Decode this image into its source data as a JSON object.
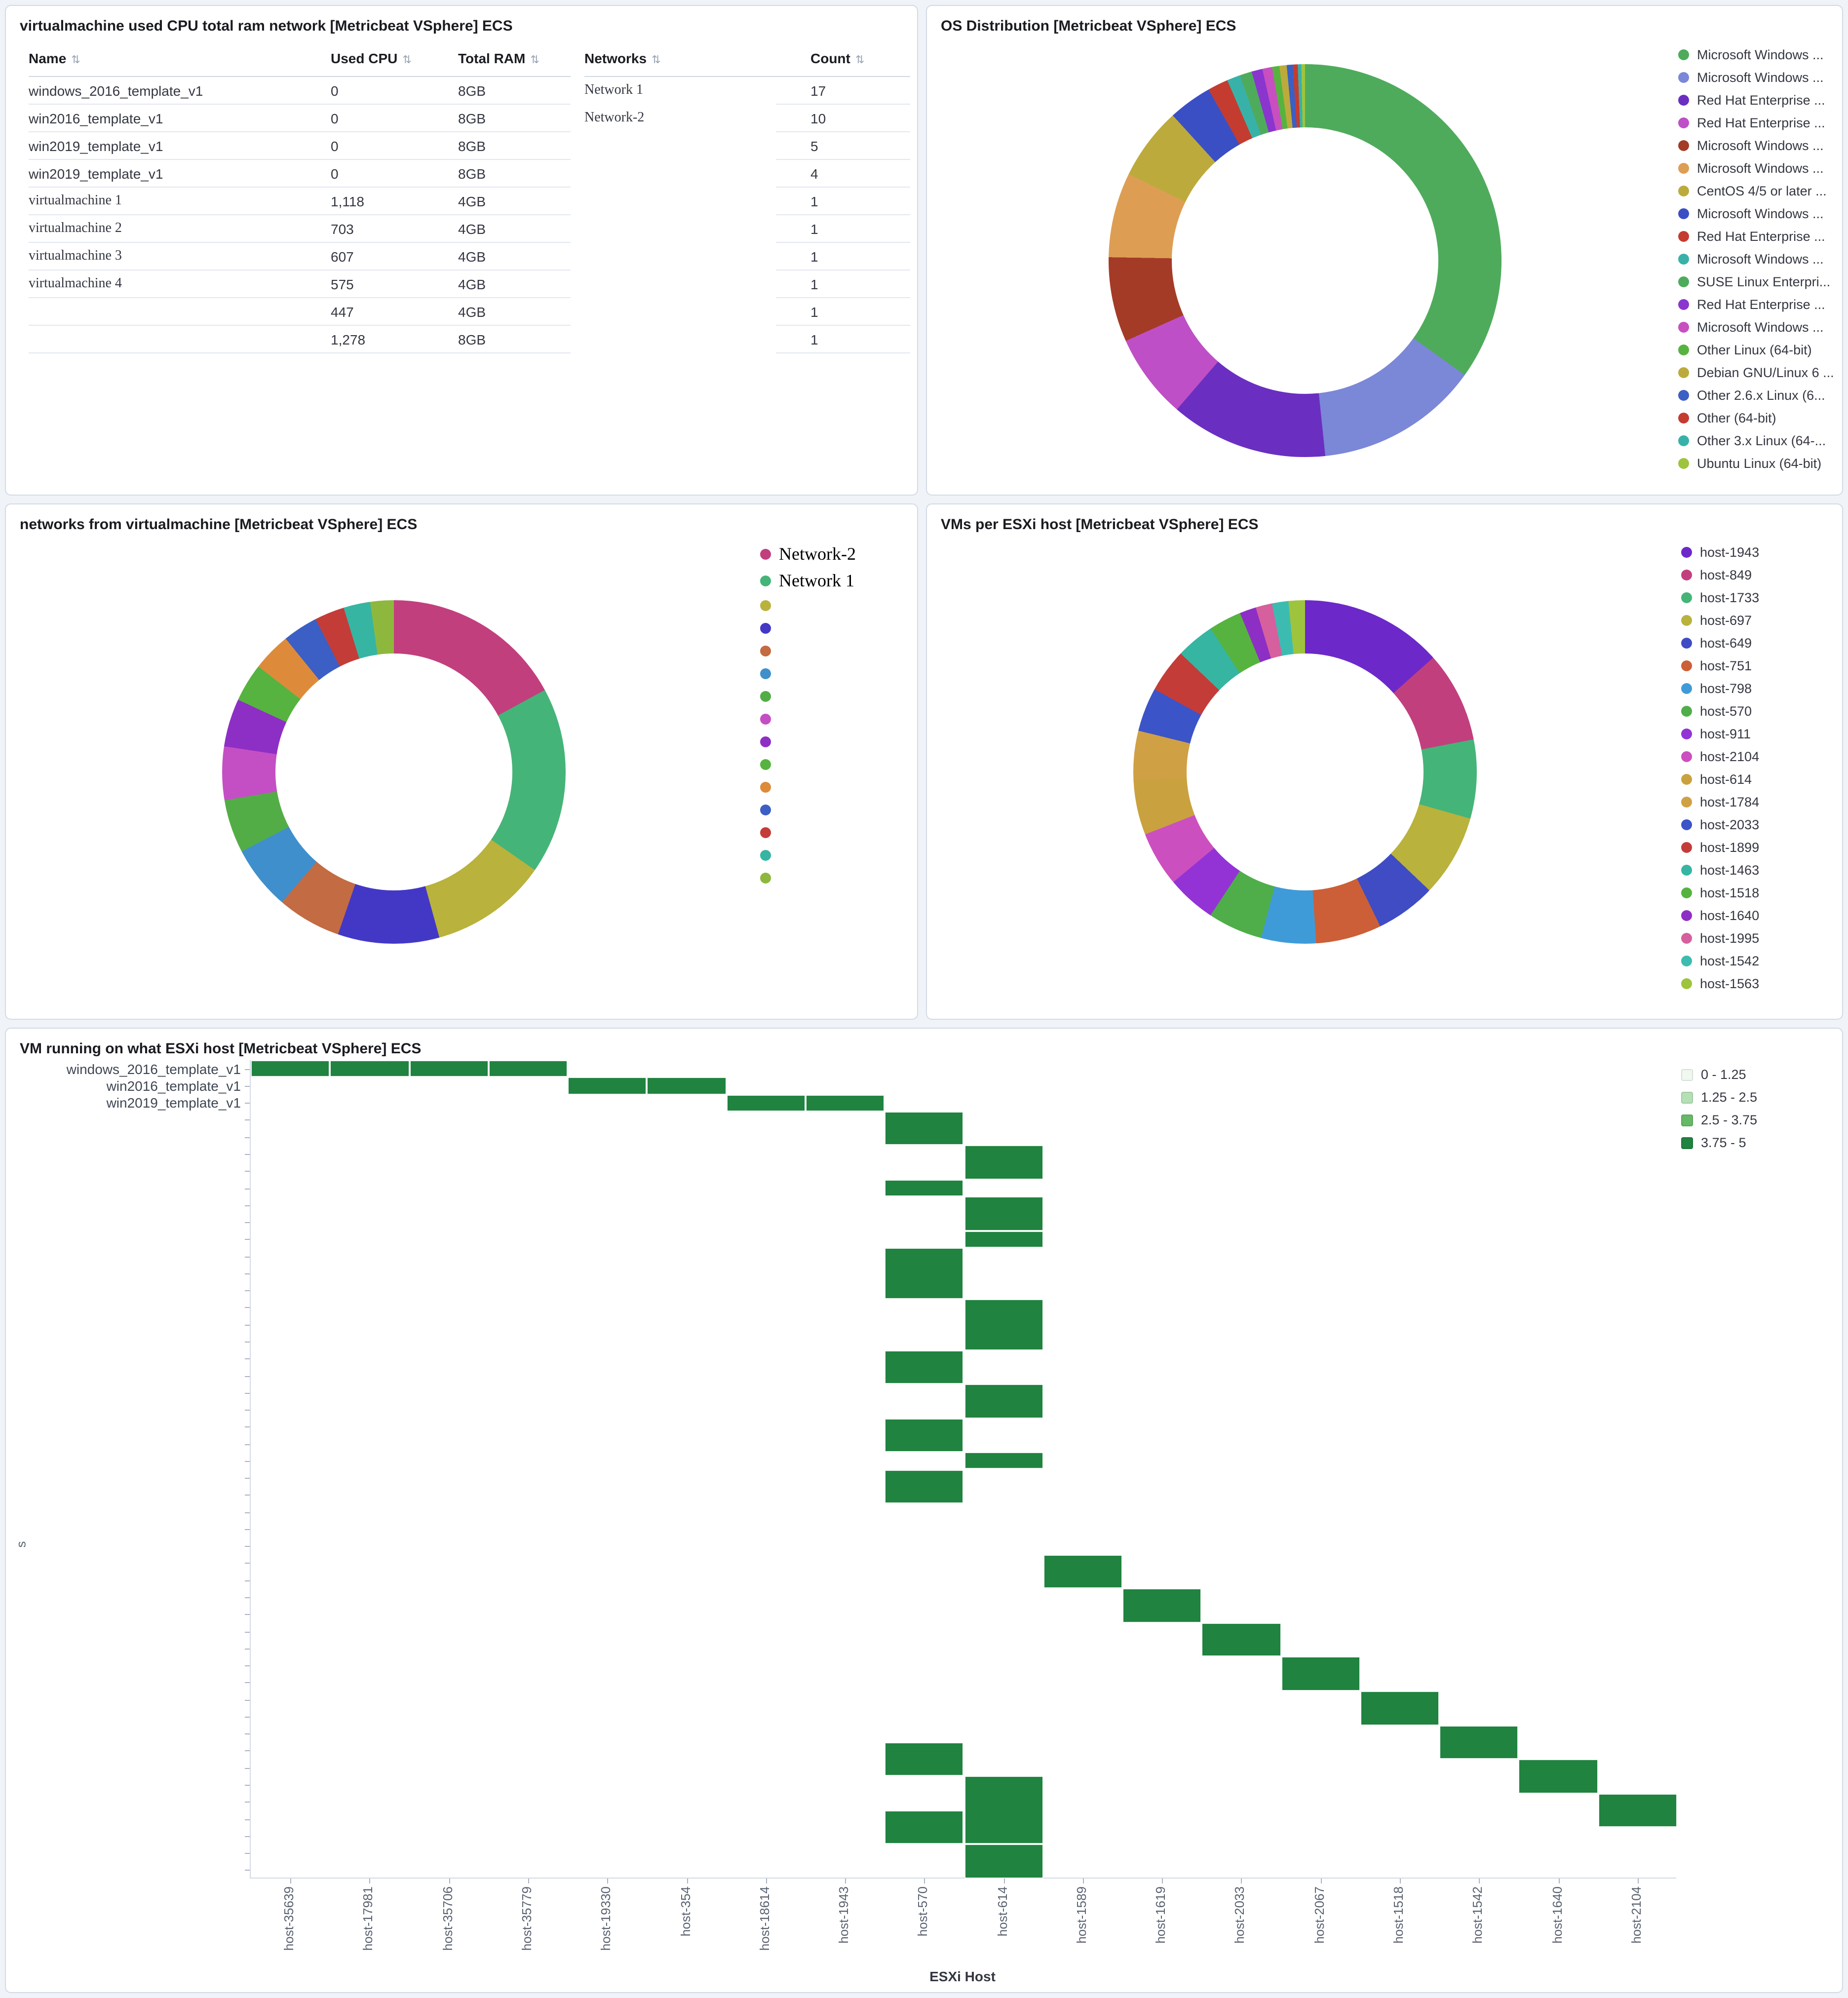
{
  "panels": {
    "vm_table": {
      "title": "virtualmachine used CPU total ram network [Metricbeat VSphere] ECS"
    },
    "os_dist": {
      "title": "OS Distribution [Metricbeat VSphere] ECS"
    },
    "networks": {
      "title": "networks from virtualmachine [Metricbeat VSphere] ECS"
    },
    "vms_per_host": {
      "title": "VMs per ESXi host [Metricbeat VSphere] ECS"
    },
    "heatmap": {
      "title": "VM running on what ESXi host [Metricbeat VSphere] ECS"
    }
  },
  "chart_data": [
    {
      "type": "table",
      "title": "virtualmachine used CPU total ram network",
      "left_columns": [
        "Name",
        "Used CPU",
        "Total RAM"
      ],
      "left_rows": [
        {
          "name": "windows_2016_template_v1",
          "used_cpu": "0",
          "total_ram": "8GB",
          "serif": false
        },
        {
          "name": "win2016_template_v1",
          "used_cpu": "0",
          "total_ram": "8GB",
          "serif": false
        },
        {
          "name": "win2019_template_v1",
          "used_cpu": "0",
          "total_ram": "8GB",
          "serif": false
        },
        {
          "name": "win2019_template_v1",
          "used_cpu": "0",
          "total_ram": "8GB",
          "serif": false
        },
        {
          "name": "virtualmachine 1",
          "used_cpu": "1,118",
          "total_ram": "4GB",
          "serif": true
        },
        {
          "name": "virtualmachine 2",
          "used_cpu": "703",
          "total_ram": "4GB",
          "serif": true
        },
        {
          "name": "virtualmachine 3",
          "used_cpu": "607",
          "total_ram": "4GB",
          "serif": true
        },
        {
          "name": "virtualmachine 4",
          "used_cpu": "575",
          "total_ram": "4GB",
          "serif": true
        },
        {
          "name": "",
          "used_cpu": "447",
          "total_ram": "4GB",
          "serif": false
        },
        {
          "name": "",
          "used_cpu": "1,278",
          "total_ram": "8GB",
          "serif": false
        }
      ],
      "right_columns": [
        "Networks",
        "Count"
      ],
      "right_rows": [
        {
          "network": "Network 1",
          "count": "17",
          "serif": true
        },
        {
          "network": "Network-2",
          "count": "10",
          "serif": true
        },
        {
          "network": "",
          "count": "5",
          "serif": false
        },
        {
          "network": "",
          "count": "4",
          "serif": false
        },
        {
          "network": "",
          "count": "1",
          "serif": false
        },
        {
          "network": "",
          "count": "1",
          "serif": false
        },
        {
          "network": "",
          "count": "1",
          "serif": false
        },
        {
          "network": "",
          "count": "1",
          "serif": false
        },
        {
          "network": "",
          "count": "1",
          "serif": false
        },
        {
          "network": "",
          "count": "1",
          "serif": false
        }
      ]
    },
    {
      "type": "pie",
      "donut": true,
      "title": "OS Distribution",
      "legend_position": "right",
      "labels": [
        "Microsoft Windows ...",
        "Microsoft Windows ...",
        "Red Hat Enterprise ...",
        "Red Hat Enterprise ...",
        "Microsoft Windows ...",
        "Microsoft Windows ...",
        "CentOS 4/5 or later ...",
        "Microsoft Windows ...",
        "Red Hat Enterprise ...",
        "Microsoft Windows ...",
        "SUSE Linux Enterpri...",
        "Red Hat Enterprise ...",
        "Microsoft Windows ...",
        "Other Linux (64-bit)",
        "Debian GNU/Linux 6 ...",
        "Other 2.6.x Linux (6...",
        "Other (64-bit)",
        "Other 3.x Linux (64-...",
        "Ubuntu Linux (64-bit)"
      ],
      "values": [
        35,
        13.5,
        13,
        7,
        7,
        7,
        6,
        3.6,
        1.7,
        1.1,
        1.0,
        0.9,
        0.8,
        0.6,
        0.6,
        0.5,
        0.4,
        0.3,
        0.3
      ],
      "colors": [
        "#4fab5c",
        "#7b87d7",
        "#6a2fc1",
        "#bf4fc6",
        "#a43b27",
        "#dd9e53",
        "#bcab3c",
        "#3b4fc4",
        "#c43c30",
        "#38b2a8",
        "#4fab5c",
        "#8a35ce",
        "#c84fc0",
        "#57b33f",
        "#bcab3c",
        "#3b5fc4",
        "#c43c30",
        "#38b2a8",
        "#9ec43d"
      ],
      "serif_legend": false
    },
    {
      "type": "pie",
      "donut": true,
      "title": "networks from virtualmachine",
      "legend_position": "right",
      "labels": [
        "Network-2",
        "Network 1",
        "",
        "",
        "",
        "",
        "",
        "",
        "",
        "",
        "",
        "",
        "",
        "",
        ""
      ],
      "values": [
        17,
        17.5,
        11,
        9.5,
        6,
        6,
        5,
        5,
        4.5,
        3.6,
        3.6,
        3.3,
        2.8,
        2.5,
        2.2
      ],
      "colors": [
        "#c23f7e",
        "#45b478",
        "#b9b23c",
        "#4338c6",
        "#c36b42",
        "#3f8fcc",
        "#53ad46",
        "#c44fc4",
        "#8d2fc4",
        "#57b33f",
        "#dd8b3b",
        "#3b5fc4",
        "#c43c38",
        "#36b5a3",
        "#8eb83d"
      ],
      "serif_legend": true
    },
    {
      "type": "pie",
      "donut": true,
      "title": "VMs per ESXi host",
      "legend_position": "right",
      "labels": [
        "host-1943",
        "host-849",
        "host-1733",
        "host-697",
        "host-649",
        "host-751",
        "host-798",
        "host-570",
        "host-911",
        "host-2104",
        "host-614",
        "host-1784",
        "host-2033",
        "host-1899",
        "host-1463",
        "host-1518",
        "host-1640",
        "host-1995",
        "host-1542",
        "host-1563"
      ],
      "values": [
        13,
        8.3,
        7.2,
        7.5,
        5.5,
        6,
        5,
        5,
        4.5,
        5,
        5,
        4.5,
        4,
        4,
        3.5,
        3,
        1.5,
        1.5,
        1.5,
        1.5
      ],
      "colors": [
        "#6d28c9",
        "#c23f7e",
        "#45b478",
        "#b9b23c",
        "#3f4cc4",
        "#cc5f38",
        "#3f9bd8",
        "#4fae49",
        "#9333d6",
        "#cc4fc0",
        "#c9a23f",
        "#d0a044",
        "#3b54c8",
        "#c43c38",
        "#36b5a3",
        "#57b33f",
        "#8d2fc4",
        "#d65f9e",
        "#3cbcb0",
        "#9ec43d"
      ],
      "serif_legend": false
    },
    {
      "type": "heatmap",
      "title": "VM running on what ESXi host",
      "xlabel": "ESXi Host",
      "y_axis_label": "s",
      "x_categories": [
        "host-35639",
        "host-17981",
        "host-35706",
        "host-35779",
        "host-19330",
        "host-354",
        "host-18614",
        "host-1943",
        "host-570",
        "host-614",
        "host-1589",
        "host-1619",
        "host-2033",
        "host-2067",
        "host-1518",
        "host-1542",
        "host-1640",
        "host-2104"
      ],
      "y_categories_visible": [
        "windows_2016_template_v1",
        "win2016_template_v1",
        "win2019_template_v1"
      ],
      "rows": 48,
      "legend": [
        {
          "label": "0 - 1.25",
          "color": "#f0f9f0"
        },
        {
          "label": "1.25 - 2.5",
          "color": "#b5e0b5"
        },
        {
          "label": "2.5 - 3.75",
          "color": "#66b966"
        },
        {
          "label": "3.75 - 5",
          "color": "#208340"
        }
      ],
      "cell_value_range": "3.75 - 5",
      "cells": [
        {
          "r": 1,
          "c": 1
        },
        {
          "r": 1,
          "c": 2
        },
        {
          "r": 1,
          "c": 3
        },
        {
          "r": 1,
          "c": 4
        },
        {
          "r": 2,
          "c": 5
        },
        {
          "r": 2,
          "c": 6
        },
        {
          "r": 3,
          "c": 7
        },
        {
          "r": 3,
          "c": 8
        },
        {
          "r": 4,
          "c": 9,
          "rs": 2
        },
        {
          "r": 6,
          "c": 10,
          "rs": 2
        },
        {
          "r": 8,
          "c": 9
        },
        {
          "r": 9,
          "c": 10,
          "rs": 2
        },
        {
          "r": 11,
          "c": 10
        },
        {
          "r": 12,
          "c": 9,
          "rs": 3
        },
        {
          "r": 15,
          "c": 10,
          "rs": 3
        },
        {
          "r": 18,
          "c": 9,
          "rs": 2
        },
        {
          "r": 20,
          "c": 10,
          "rs": 2
        },
        {
          "r": 22,
          "c": 9,
          "rs": 2
        },
        {
          "r": 24,
          "c": 10
        },
        {
          "r": 25,
          "c": 9,
          "rs": 2
        },
        {
          "r": 30,
          "c": 11,
          "rs": 2
        },
        {
          "r": 32,
          "c": 12,
          "rs": 2
        },
        {
          "r": 34,
          "c": 13,
          "rs": 2
        },
        {
          "r": 36,
          "c": 14,
          "rs": 2
        },
        {
          "r": 38,
          "c": 15,
          "rs": 2
        },
        {
          "r": 40,
          "c": 16,
          "rs": 2
        },
        {
          "r": 42,
          "c": 17,
          "rs": 2
        },
        {
          "r": 44,
          "c": 18,
          "rs": 2
        },
        {
          "r": 41,
          "c": 9,
          "rs": 2
        },
        {
          "r": 43,
          "c": 10,
          "rs": 4
        },
        {
          "r": 45,
          "c": 9,
          "rs": 2
        },
        {
          "r": 47,
          "c": 10,
          "rs": 2
        }
      ]
    }
  ]
}
